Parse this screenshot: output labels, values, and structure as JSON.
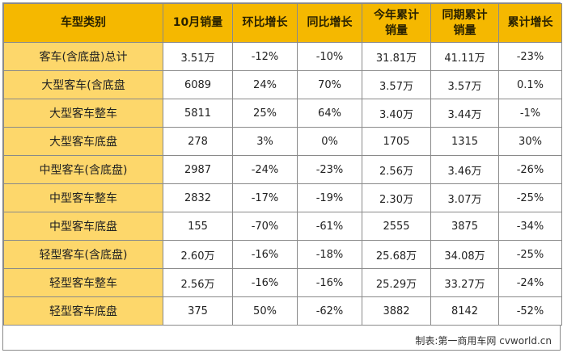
{
  "table": {
    "headers": [
      "车型类别",
      "10月销量",
      "环比增长",
      "同比增长",
      "今年累计\n销量",
      "同期累计\n销量",
      "累计增长"
    ],
    "rows": [
      [
        "客车(含底盘)总计",
        "3.51万",
        "-12%",
        "-10%",
        "31.81万",
        "41.11万",
        "-23%"
      ],
      [
        "大型客车(含底盘",
        "6089",
        "24%",
        "70%",
        "3.57万",
        "3.57万",
        "0.1%"
      ],
      [
        "大型客车整车",
        "5811",
        "25%",
        "64%",
        "3.40万",
        "3.44万",
        "-1%"
      ],
      [
        "大型客车底盘",
        "278",
        "3%",
        "0%",
        "1705",
        "1315",
        "30%"
      ],
      [
        "中型客车(含底盘)",
        "2987",
        "-24%",
        "-23%",
        "2.56万",
        "3.46万",
        "-26%"
      ],
      [
        "中型客车整车",
        "2832",
        "-17%",
        "-19%",
        "2.30万",
        "3.07万",
        "-25%"
      ],
      [
        "中型客车底盘",
        "155",
        "-70%",
        "-61%",
        "2555",
        "3875",
        "-34%"
      ],
      [
        "轻型客车(含底盘)",
        "2.60万",
        "-16%",
        "-18%",
        "25.68万",
        "34.08万",
        "-25%"
      ],
      [
        "轻型客车整车",
        "2.56万",
        "-16%",
        "-16%",
        "25.29万",
        "33.27万",
        "-24%"
      ],
      [
        "轻型客车底盘",
        "375",
        "50%",
        "-62%",
        "3882",
        "8142",
        "-52%"
      ]
    ]
  },
  "caption": "制表:第一商用车网 cvworld.cn",
  "colors": {
    "header_bg": "#f5b800",
    "name_col_bg": "#fdd76b",
    "border": "#8a8a8a"
  }
}
